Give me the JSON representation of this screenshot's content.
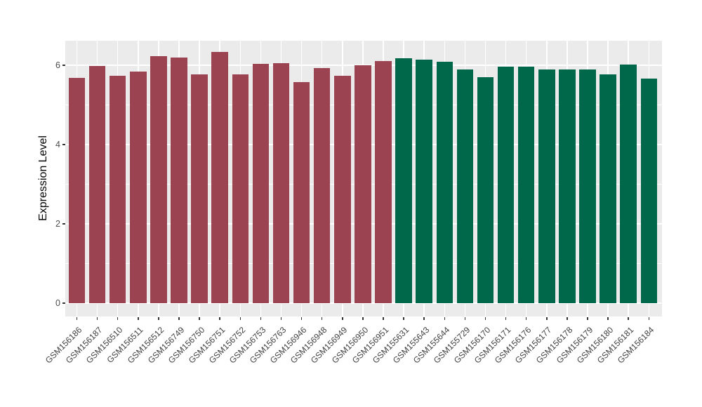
{
  "figure": {
    "background": "#FFFFFF",
    "panel_background": "#EBEBEB",
    "gridline_color": "#FFFFFF",
    "tick_color": "#333333",
    "axis_text_color": "#4D4D4D",
    "axis_title_color": "#000000"
  },
  "chart_data": {
    "type": "bar",
    "title": "",
    "xlabel": "",
    "ylabel": "Expression Level",
    "ylim": [
      0,
      6.62
    ],
    "yticks": [
      0,
      2,
      4,
      6
    ],
    "yticks_minor": [
      1,
      3,
      5
    ],
    "grid": "on",
    "legend": "none",
    "x_label_angle_deg": 45,
    "group_colors": {
      "maroon": "#9C4351",
      "green": "#00684A"
    },
    "bars": [
      {
        "label": "GSM156186",
        "value": 5.68,
        "group": "maroon"
      },
      {
        "label": "GSM156187",
        "value": 5.98,
        "group": "maroon"
      },
      {
        "label": "GSM156510",
        "value": 5.73,
        "group": "maroon"
      },
      {
        "label": "GSM156511",
        "value": 5.84,
        "group": "maroon"
      },
      {
        "label": "GSM156512",
        "value": 6.23,
        "group": "maroon"
      },
      {
        "label": "GSM156749",
        "value": 6.2,
        "group": "maroon"
      },
      {
        "label": "GSM156750",
        "value": 5.77,
        "group": "maroon"
      },
      {
        "label": "GSM156751",
        "value": 6.33,
        "group": "maroon"
      },
      {
        "label": "GSM156752",
        "value": 5.77,
        "group": "maroon"
      },
      {
        "label": "GSM156753",
        "value": 6.04,
        "group": "maroon"
      },
      {
        "label": "GSM156763",
        "value": 6.05,
        "group": "maroon"
      },
      {
        "label": "GSM156946",
        "value": 5.57,
        "group": "maroon"
      },
      {
        "label": "GSM156948",
        "value": 5.93,
        "group": "maroon"
      },
      {
        "label": "GSM156949",
        "value": 5.73,
        "group": "maroon"
      },
      {
        "label": "GSM156950",
        "value": 6.0,
        "group": "maroon"
      },
      {
        "label": "GSM156951",
        "value": 6.11,
        "group": "maroon"
      },
      {
        "label": "GSM155631",
        "value": 6.17,
        "group": "green"
      },
      {
        "label": "GSM155643",
        "value": 6.15,
        "group": "green"
      },
      {
        "label": "GSM155644",
        "value": 6.08,
        "group": "green"
      },
      {
        "label": "GSM155729",
        "value": 5.89,
        "group": "green"
      },
      {
        "label": "GSM156170",
        "value": 5.7,
        "group": "green"
      },
      {
        "label": "GSM156171",
        "value": 5.97,
        "group": "green"
      },
      {
        "label": "GSM156176",
        "value": 5.97,
        "group": "green"
      },
      {
        "label": "GSM156177",
        "value": 5.9,
        "group": "green"
      },
      {
        "label": "GSM156178",
        "value": 5.9,
        "group": "green"
      },
      {
        "label": "GSM156179",
        "value": 5.89,
        "group": "green"
      },
      {
        "label": "GSM156180",
        "value": 5.77,
        "group": "green"
      },
      {
        "label": "GSM156181",
        "value": 6.01,
        "group": "green"
      },
      {
        "label": "GSM156184",
        "value": 5.67,
        "group": "green"
      }
    ]
  }
}
